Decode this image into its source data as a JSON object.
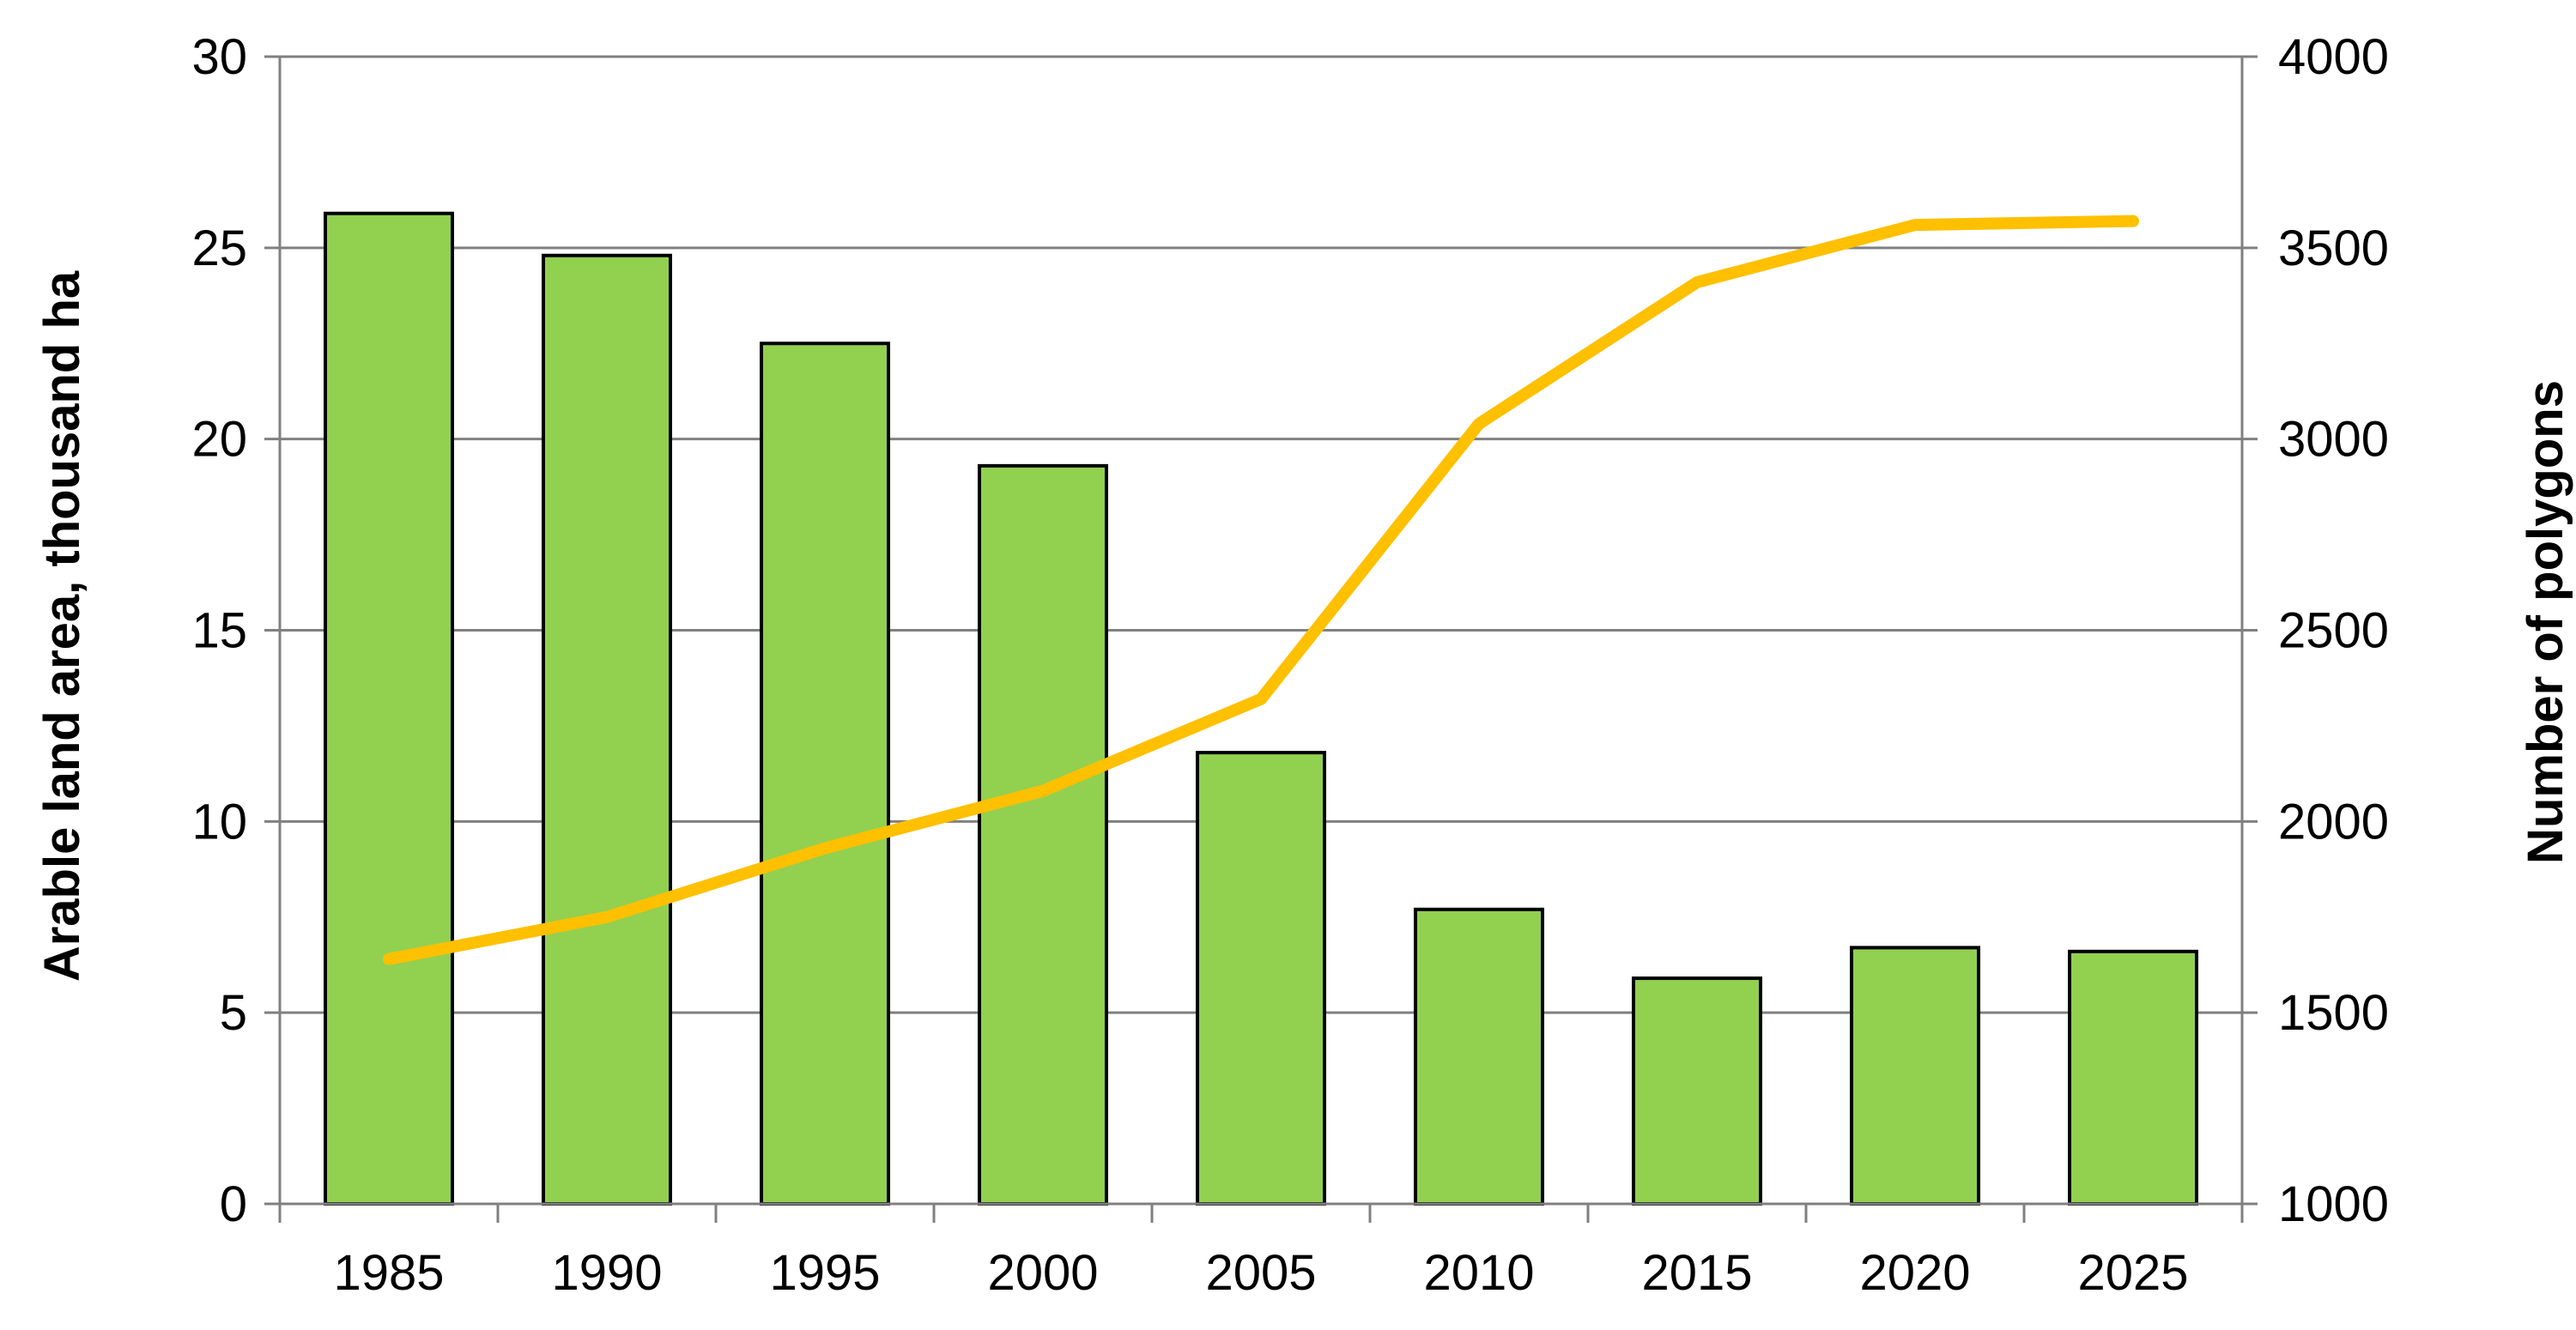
{
  "chart_data": {
    "type": "bar",
    "categories": [
      "1985",
      "1990",
      "1995",
      "2000",
      "2005",
      "2010",
      "2015",
      "2020",
      "2025"
    ],
    "series": [
      {
        "type": "bar",
        "axis": "left",
        "values": [
          25.9,
          24.8,
          22.5,
          19.3,
          11.8,
          7.7,
          5.9,
          6.7,
          6.6
        ]
      },
      {
        "type": "line",
        "axis": "right",
        "values": [
          1640,
          1750,
          1930,
          2080,
          2320,
          3040,
          3410,
          3560,
          3570
        ]
      }
    ],
    "xlabel": "",
    "ylabel": "Arable land area, thousand ha",
    "y2label": "Number of polygons",
    "ylim": [
      0,
      30
    ],
    "y2lim": [
      1000,
      4000
    ],
    "yticks": [
      "0",
      "5",
      "10",
      "15",
      "20",
      "25",
      "30"
    ],
    "y2ticks": [
      "1000",
      "1500",
      "2000",
      "2500",
      "3000",
      "3500",
      "4000"
    ],
    "grid": true,
    "legend": "none",
    "colors": {
      "bar_fill": "#92d050",
      "bar_stroke": "#000000",
      "line": "#ffc000",
      "grid": "#808080",
      "axis": "#808080"
    }
  }
}
